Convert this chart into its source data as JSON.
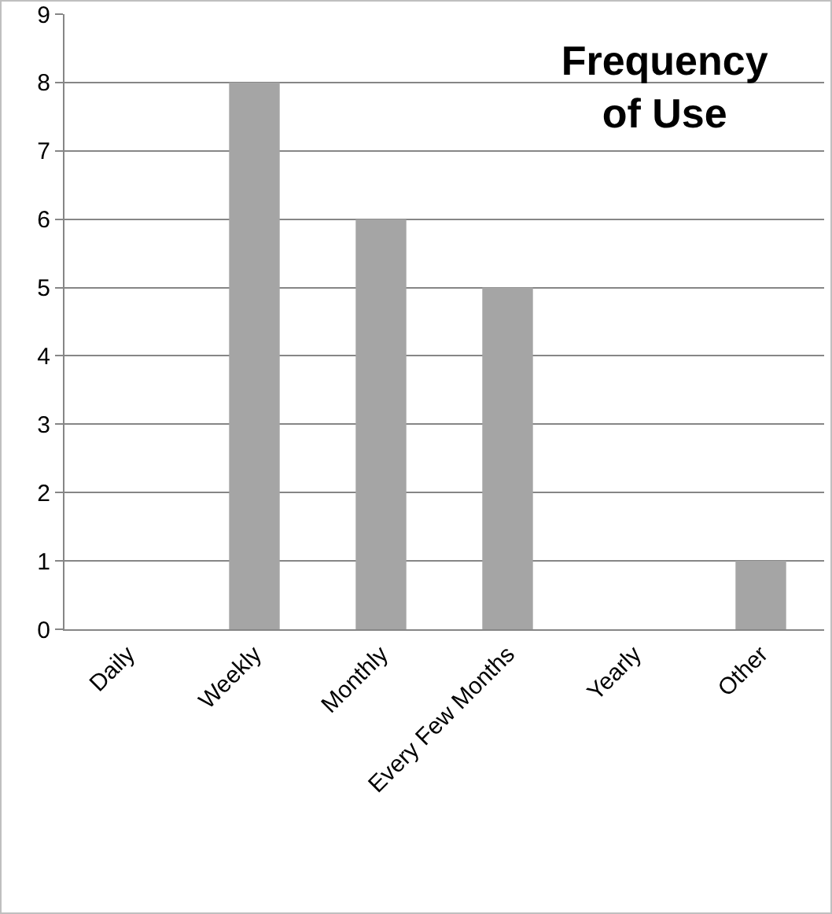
{
  "chart_data": {
    "type": "bar",
    "title": "Frequency of Use",
    "categories": [
      "Daily",
      "Weekly",
      "Monthly",
      "Every Few Months",
      "Yearly",
      "Other"
    ],
    "values": [
      0,
      8,
      6,
      5,
      0,
      1
    ],
    "color": "#a5a5a5",
    "ylim": [
      0,
      9
    ],
    "yticks": [
      0,
      1,
      2,
      3,
      4,
      5,
      6,
      7,
      8,
      9
    ],
    "grid": "y"
  }
}
